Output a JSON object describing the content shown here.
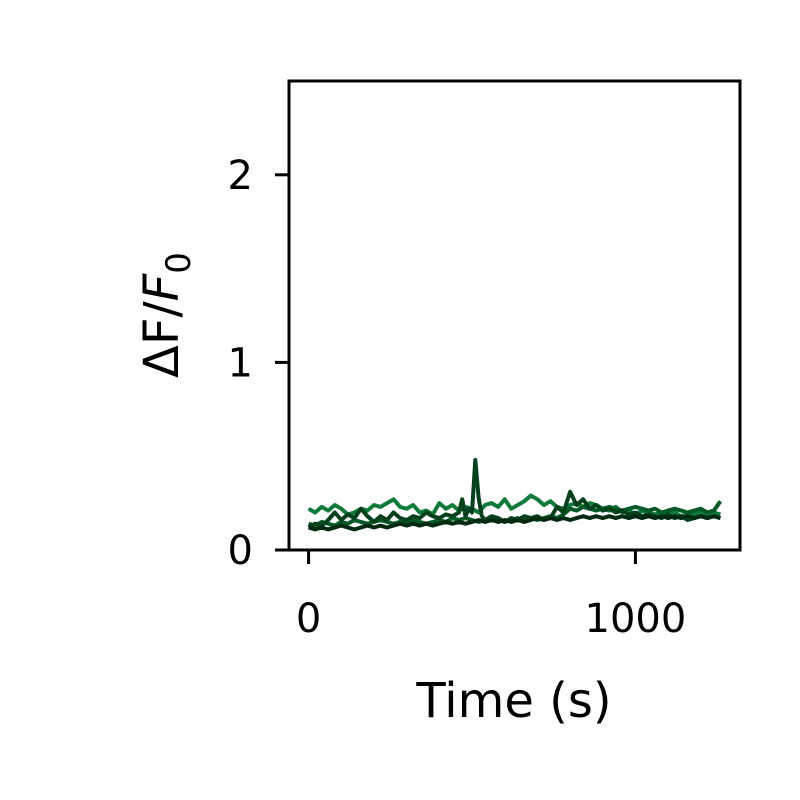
{
  "chart_data": {
    "type": "line",
    "title": "",
    "xlabel": "Time (s)",
    "ylabel": {
      "prefix": "ΔF/",
      "variable": "F",
      "subscript": "0"
    },
    "xlim": [
      -60,
      1320
    ],
    "ylim": [
      0,
      2.5
    ],
    "x_ticks": [
      {
        "value": 0,
        "label": "0"
      },
      {
        "value": 1000,
        "label": "1000"
      }
    ],
    "y_ticks": [
      {
        "value": 0,
        "label": "0"
      },
      {
        "value": 1,
        "label": "1"
      },
      {
        "value": 2,
        "label": "2"
      }
    ],
    "grid": false,
    "series": [
      {
        "color": "#0f7a3a",
        "x": [
          0,
          20,
          40,
          60,
          80,
          100,
          120,
          140,
          160,
          180,
          200,
          220,
          240,
          260,
          280,
          300,
          320,
          340,
          360,
          380,
          400,
          420,
          440,
          460,
          480,
          500,
          520,
          540,
          560,
          580,
          600,
          620,
          640,
          660,
          680,
          700,
          720,
          740,
          760,
          780,
          800,
          820,
          840,
          860,
          880,
          900,
          920,
          940,
          960,
          980,
          1000,
          1020,
          1040,
          1060,
          1080,
          1100,
          1120,
          1140,
          1160,
          1180,
          1200,
          1220,
          1240,
          1260
        ],
        "y": [
          0.22,
          0.2,
          0.23,
          0.21,
          0.24,
          0.22,
          0.19,
          0.2,
          0.22,
          0.21,
          0.24,
          0.23,
          0.25,
          0.27,
          0.23,
          0.22,
          0.24,
          0.2,
          0.21,
          0.19,
          0.25,
          0.22,
          0.24,
          0.21,
          0.23,
          0.22,
          0.2,
          0.24,
          0.25,
          0.23,
          0.27,
          0.22,
          0.24,
          0.26,
          0.29,
          0.27,
          0.24,
          0.26,
          0.23,
          0.22,
          0.24,
          0.25,
          0.23,
          0.25,
          0.24,
          0.22,
          0.21,
          0.23,
          0.2,
          0.21,
          0.19,
          0.21,
          0.2,
          0.19,
          0.2,
          0.19,
          0.2,
          0.18,
          0.19,
          0.19,
          0.2,
          0.19,
          0.2,
          0.19
        ]
      },
      {
        "color": "#055a28",
        "x": [
          0,
          20,
          40,
          60,
          80,
          100,
          120,
          140,
          160,
          180,
          200,
          220,
          240,
          260,
          280,
          300,
          320,
          340,
          360,
          380,
          400,
          420,
          440,
          460,
          480,
          500,
          520,
          540,
          560,
          580,
          600,
          620,
          640,
          660,
          680,
          700,
          720,
          740,
          760,
          780,
          800,
          820,
          840,
          860,
          880,
          900,
          920,
          940,
          960,
          980,
          1000,
          1020,
          1040,
          1060,
          1080,
          1100,
          1120,
          1140,
          1160,
          1180,
          1200,
          1220,
          1240,
          1260
        ],
        "y": [
          0.14,
          0.13,
          0.15,
          0.14,
          0.13,
          0.15,
          0.14,
          0.16,
          0.15,
          0.14,
          0.15,
          0.16,
          0.15,
          0.14,
          0.15,
          0.14,
          0.16,
          0.15,
          0.14,
          0.15,
          0.16,
          0.15,
          0.17,
          0.16,
          0.17,
          0.16,
          0.15,
          0.16,
          0.17,
          0.16,
          0.15,
          0.16,
          0.17,
          0.16,
          0.17,
          0.16,
          0.17,
          0.18,
          0.17,
          0.19,
          0.22,
          0.21,
          0.23,
          0.22,
          0.21,
          0.22,
          0.23,
          0.22,
          0.21,
          0.22,
          0.23,
          0.22,
          0.21,
          0.22,
          0.2,
          0.21,
          0.22,
          0.21,
          0.2,
          0.21,
          0.22,
          0.2,
          0.21,
          0.26
        ]
      },
      {
        "color": "#03401c",
        "x": [
          0,
          20,
          40,
          60,
          80,
          100,
          120,
          140,
          160,
          180,
          200,
          220,
          240,
          260,
          280,
          300,
          320,
          340,
          360,
          380,
          400,
          420,
          440,
          460,
          470,
          480,
          490,
          500,
          510,
          520,
          530,
          540,
          560,
          580,
          600,
          620,
          640,
          660,
          680,
          700,
          720,
          740,
          760,
          780,
          800,
          820,
          840,
          860,
          880,
          900,
          920,
          940,
          960,
          980,
          1000,
          1020,
          1040,
          1060,
          1080,
          1100,
          1120,
          1140,
          1160,
          1180,
          1200,
          1220,
          1240,
          1260
        ],
        "y": [
          0.12,
          0.14,
          0.13,
          0.16,
          0.2,
          0.16,
          0.19,
          0.17,
          0.22,
          0.18,
          0.15,
          0.18,
          0.16,
          0.2,
          0.17,
          0.16,
          0.18,
          0.17,
          0.2,
          0.18,
          0.17,
          0.19,
          0.18,
          0.2,
          0.27,
          0.18,
          0.22,
          0.2,
          0.48,
          0.28,
          0.18,
          0.16,
          0.18,
          0.17,
          0.15,
          0.17,
          0.16,
          0.18,
          0.17,
          0.18,
          0.16,
          0.17,
          0.23,
          0.2,
          0.31,
          0.24,
          0.27,
          0.22,
          0.24,
          0.21,
          0.22,
          0.2,
          0.21,
          0.19,
          0.2,
          0.18,
          0.19,
          0.18,
          0.17,
          0.19,
          0.17,
          0.18,
          0.16,
          0.17,
          0.18,
          0.17,
          0.18,
          0.17
        ]
      },
      {
        "color": "#022a12",
        "x": [
          0,
          20,
          40,
          60,
          80,
          100,
          120,
          140,
          160,
          180,
          200,
          220,
          240,
          260,
          280,
          300,
          320,
          340,
          360,
          380,
          400,
          420,
          440,
          460,
          480,
          500,
          520,
          540,
          560,
          580,
          600,
          620,
          640,
          660,
          680,
          700,
          720,
          740,
          760,
          780,
          800,
          820,
          840,
          860,
          880,
          900,
          920,
          940,
          960,
          980,
          1000,
          1020,
          1040,
          1060,
          1080,
          1100,
          1120,
          1140,
          1160,
          1180,
          1200,
          1220,
          1240,
          1260
        ],
        "y": [
          0.12,
          0.11,
          0.12,
          0.11,
          0.12,
          0.13,
          0.12,
          0.11,
          0.12,
          0.13,
          0.12,
          0.13,
          0.12,
          0.13,
          0.14,
          0.13,
          0.14,
          0.13,
          0.14,
          0.13,
          0.14,
          0.15,
          0.14,
          0.15,
          0.14,
          0.15,
          0.16,
          0.15,
          0.16,
          0.15,
          0.16,
          0.15,
          0.16,
          0.15,
          0.16,
          0.17,
          0.16,
          0.17,
          0.16,
          0.17,
          0.16,
          0.17,
          0.18,
          0.17,
          0.18,
          0.17,
          0.18,
          0.17,
          0.18,
          0.17,
          0.18,
          0.17,
          0.18,
          0.17,
          0.18,
          0.17,
          0.18,
          0.17,
          0.18,
          0.17,
          0.18,
          0.17,
          0.18,
          0.17
        ]
      }
    ]
  }
}
